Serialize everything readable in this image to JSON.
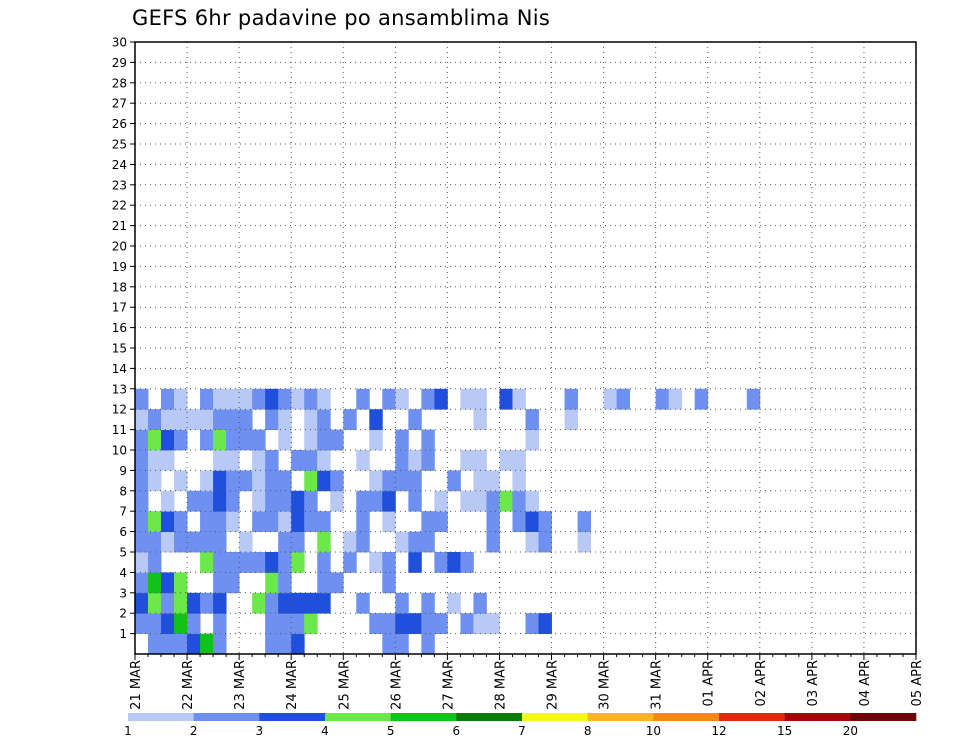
{
  "title": "GEFS 6hr padavine po ansamblima Nis",
  "chart_data": {
    "type": "heatmap",
    "title": "GEFS 6hr padavine po ansamblima Nis",
    "x_tick_labels": [
      "21 MAR",
      "22 MAR",
      "23 MAR",
      "24 MAR",
      "25 MAR",
      "26 MAR",
      "27 MAR",
      "28 MAR",
      "29 MAR",
      "30 MAR",
      "31 MAR",
      "01 APR",
      "02 APR",
      "03 APR",
      "04 APR",
      "05 APR"
    ],
    "y_tick_labels": [
      "1",
      "2",
      "3",
      "4",
      "5",
      "6",
      "7",
      "8",
      "9",
      "10",
      "11",
      "12",
      "13",
      "14",
      "15",
      "16",
      "17",
      "18",
      "19",
      "20",
      "21",
      "22",
      "23",
      "24",
      "25",
      "26",
      "27",
      "28",
      "29",
      "30"
    ],
    "ylim": [
      0,
      30
    ],
    "time_steps_per_day": 4,
    "grid": true,
    "legend": {
      "placement": "bottom",
      "levels": [
        "1",
        "2",
        "3",
        "4",
        "5",
        "6",
        "7",
        "8",
        "10",
        "12",
        "15",
        "20"
      ],
      "colors": [
        "#b9c9f5",
        "#6e90f0",
        "#1f4fdb",
        "#6ce84c",
        "#10c21a",
        "#0a7a0a",
        "#f7f71c",
        "#f8b22c",
        "#f5871b",
        "#dc2b10",
        "#a00a0a",
        "#6e0606"
      ]
    },
    "cells": [
      [
        1,
        0.25,
        2
      ],
      [
        1,
        0.5,
        2
      ],
      [
        1,
        0.75,
        2
      ],
      [
        1,
        1,
        3
      ],
      [
        1,
        1.25,
        5
      ],
      [
        1,
        1.5,
        2
      ],
      [
        1,
        2.5,
        2
      ],
      [
        1,
        2.75,
        2
      ],
      [
        1,
        3,
        3
      ],
      [
        1,
        4.75,
        2
      ],
      [
        1,
        5,
        2
      ],
      [
        1,
        5.5,
        2
      ],
      [
        2,
        0,
        2
      ],
      [
        2,
        0.25,
        2
      ],
      [
        2,
        0.5,
        3
      ],
      [
        2,
        0.75,
        5
      ],
      [
        2,
        1,
        2
      ],
      [
        2,
        1.5,
        2
      ],
      [
        2,
        2.5,
        2
      ],
      [
        2,
        2.75,
        2
      ],
      [
        2,
        3,
        2
      ],
      [
        2,
        3.25,
        4
      ],
      [
        2,
        4.5,
        2
      ],
      [
        2,
        4.75,
        2
      ],
      [
        2,
        5,
        3
      ],
      [
        2,
        5.25,
        3
      ],
      [
        2,
        5.5,
        2
      ],
      [
        2,
        5.75,
        2
      ],
      [
        2,
        6.25,
        2
      ],
      [
        2,
        6.5,
        1
      ],
      [
        2,
        6.75,
        1
      ],
      [
        2,
        7.5,
        2
      ],
      [
        2,
        7.75,
        3
      ],
      [
        3,
        0,
        3
      ],
      [
        3,
        0.25,
        4
      ],
      [
        3,
        0.5,
        2
      ],
      [
        3,
        0.75,
        4
      ],
      [
        3,
        1,
        3
      ],
      [
        3,
        1.25,
        2
      ],
      [
        3,
        1.5,
        3
      ],
      [
        3,
        2.25,
        4
      ],
      [
        3,
        2.5,
        2
      ],
      [
        3,
        2.75,
        3
      ],
      [
        3,
        3,
        3
      ],
      [
        3,
        3.25,
        3
      ],
      [
        3,
        3.5,
        3
      ],
      [
        3,
        4.25,
        2
      ],
      [
        3,
        5,
        2
      ],
      [
        3,
        5.5,
        2
      ],
      [
        3,
        6,
        1
      ],
      [
        3,
        6.5,
        2
      ],
      [
        4,
        0,
        2
      ],
      [
        4,
        0.25,
        5
      ],
      [
        4,
        0.5,
        3
      ],
      [
        4,
        0.75,
        4
      ],
      [
        4,
        1.5,
        2
      ],
      [
        4,
        1.75,
        2
      ],
      [
        4,
        2.5,
        4
      ],
      [
        4,
        2.75,
        2
      ],
      [
        4,
        3.5,
        2
      ],
      [
        4,
        3.75,
        2
      ],
      [
        4,
        4.75,
        2
      ],
      [
        5,
        0,
        1
      ],
      [
        5,
        0.25,
        2
      ],
      [
        5,
        1.25,
        4
      ],
      [
        5,
        1.5,
        2
      ],
      [
        5,
        1.75,
        2
      ],
      [
        5,
        2,
        2
      ],
      [
        5,
        2.25,
        2
      ],
      [
        5,
        2.5,
        3
      ],
      [
        5,
        2.75,
        2
      ],
      [
        5,
        3,
        4
      ],
      [
        5,
        3.5,
        2
      ],
      [
        5,
        4,
        2
      ],
      [
        5,
        4.5,
        1
      ],
      [
        5,
        4.75,
        2
      ],
      [
        5,
        5.25,
        3
      ],
      [
        5,
        5.75,
        2
      ],
      [
        5,
        6,
        3
      ],
      [
        5,
        6.25,
        2
      ],
      [
        6,
        0,
        2
      ],
      [
        6,
        0.25,
        2
      ],
      [
        6,
        0.5,
        1
      ],
      [
        6,
        0.75,
        2
      ],
      [
        6,
        1,
        2
      ],
      [
        6,
        1.25,
        2
      ],
      [
        6,
        1.5,
        2
      ],
      [
        6,
        2,
        1
      ],
      [
        6,
        2.75,
        2
      ],
      [
        6,
        3,
        2
      ],
      [
        6,
        3.5,
        4
      ],
      [
        6,
        4,
        1
      ],
      [
        6,
        4.25,
        2
      ],
      [
        6,
        5,
        1
      ],
      [
        6,
        5.25,
        2
      ],
      [
        6,
        5.5,
        2
      ],
      [
        6,
        6.75,
        2
      ],
      [
        6,
        7.5,
        1
      ],
      [
        6,
        7.75,
        2
      ],
      [
        6,
        8.5,
        1
      ],
      [
        7,
        0,
        2
      ],
      [
        7,
        0.25,
        4
      ],
      [
        7,
        0.5,
        3
      ],
      [
        7,
        0.75,
        2
      ],
      [
        7,
        1.25,
        2
      ],
      [
        7,
        1.5,
        2
      ],
      [
        7,
        1.75,
        1
      ],
      [
        7,
        2.25,
        2
      ],
      [
        7,
        2.5,
        2
      ],
      [
        7,
        2.75,
        1
      ],
      [
        7,
        3,
        3
      ],
      [
        7,
        3.25,
        2
      ],
      [
        7,
        3.5,
        2
      ],
      [
        7,
        4.25,
        2
      ],
      [
        7,
        4.75,
        1
      ],
      [
        7,
        5.5,
        2
      ],
      [
        7,
        5.75,
        2
      ],
      [
        7,
        6.75,
        2
      ],
      [
        7,
        7.25,
        2
      ],
      [
        7,
        7.5,
        3
      ],
      [
        7,
        7.75,
        2
      ],
      [
        7,
        8.5,
        2
      ],
      [
        8,
        0,
        2
      ],
      [
        8,
        0.5,
        1
      ],
      [
        8,
        1,
        2
      ],
      [
        8,
        1.25,
        2
      ],
      [
        8,
        1.5,
        3
      ],
      [
        8,
        1.75,
        2
      ],
      [
        8,
        2.25,
        1
      ],
      [
        8,
        2.5,
        2
      ],
      [
        8,
        2.75,
        2
      ],
      [
        8,
        3,
        3
      ],
      [
        8,
        3.25,
        2
      ],
      [
        8,
        3.75,
        1
      ],
      [
        8,
        4.25,
        2
      ],
      [
        8,
        4.5,
        2
      ],
      [
        8,
        4.75,
        3
      ],
      [
        8,
        5.25,
        2
      ],
      [
        8,
        5.75,
        1
      ],
      [
        8,
        6.25,
        1
      ],
      [
        8,
        6.5,
        1
      ],
      [
        8,
        6.75,
        2
      ],
      [
        8,
        7,
        4
      ],
      [
        8,
        7.25,
        2
      ],
      [
        8,
        7.5,
        1
      ],
      [
        9,
        0,
        2
      ],
      [
        9,
        0.25,
        1
      ],
      [
        9,
        0.75,
        1
      ],
      [
        9,
        1.25,
        1
      ],
      [
        9,
        1.5,
        3
      ],
      [
        9,
        1.75,
        2
      ],
      [
        9,
        2,
        2
      ],
      [
        9,
        2.25,
        1
      ],
      [
        9,
        2.5,
        2
      ],
      [
        9,
        2.75,
        2
      ],
      [
        9,
        3.25,
        4
      ],
      [
        9,
        3.5,
        3
      ],
      [
        9,
        3.75,
        2
      ],
      [
        9,
        4.5,
        1
      ],
      [
        9,
        4.75,
        2
      ],
      [
        9,
        5,
        2
      ],
      [
        9,
        5.25,
        2
      ],
      [
        9,
        6,
        2
      ],
      [
        9,
        6.5,
        1
      ],
      [
        9,
        6.75,
        1
      ],
      [
        9,
        7.25,
        1
      ],
      [
        10,
        0,
        2
      ],
      [
        10,
        0.25,
        1
      ],
      [
        10,
        0.5,
        1
      ],
      [
        10,
        1.5,
        1
      ],
      [
        10,
        1.75,
        1
      ],
      [
        10,
        2.25,
        1
      ],
      [
        10,
        2.5,
        2
      ],
      [
        10,
        3,
        2
      ],
      [
        10,
        3.25,
        2
      ],
      [
        10,
        3.5,
        1
      ],
      [
        10,
        4.25,
        1
      ],
      [
        10,
        5,
        2
      ],
      [
        10,
        5.25,
        1
      ],
      [
        10,
        5.5,
        2
      ],
      [
        10,
        6.25,
        1
      ],
      [
        10,
        6.5,
        1
      ],
      [
        10,
        7,
        1
      ],
      [
        10,
        7.25,
        1
      ],
      [
        11,
        0,
        2
      ],
      [
        11,
        0.25,
        4
      ],
      [
        11,
        0.5,
        3
      ],
      [
        11,
        0.75,
        2
      ],
      [
        11,
        1.25,
        2
      ],
      [
        11,
        1.5,
        4
      ],
      [
        11,
        1.75,
        2
      ],
      [
        11,
        2,
        2
      ],
      [
        11,
        2.25,
        2
      ],
      [
        11,
        2.75,
        1
      ],
      [
        11,
        3.25,
        1
      ],
      [
        11,
        3.5,
        2
      ],
      [
        11,
        3.75,
        2
      ],
      [
        11,
        4.5,
        1
      ],
      [
        11,
        5,
        2
      ],
      [
        11,
        5.5,
        2
      ],
      [
        11,
        7.5,
        1
      ],
      [
        12,
        0,
        1
      ],
      [
        12,
        0.25,
        2
      ],
      [
        12,
        0.5,
        1
      ],
      [
        12,
        0.75,
        1
      ],
      [
        12,
        1,
        1
      ],
      [
        12,
        1.25,
        1
      ],
      [
        12,
        1.5,
        2
      ],
      [
        12,
        1.75,
        2
      ],
      [
        12,
        2,
        2
      ],
      [
        12,
        2.5,
        2
      ],
      [
        12,
        2.75,
        1
      ],
      [
        12,
        3.25,
        1
      ],
      [
        12,
        3.5,
        2
      ],
      [
        12,
        4,
        2
      ],
      [
        12,
        4.5,
        3
      ],
      [
        12,
        5.25,
        2
      ],
      [
        12,
        6.5,
        1
      ],
      [
        12,
        7.5,
        2
      ],
      [
        12,
        8.25,
        1
      ]
    ],
    "cells_upper": [
      [
        13,
        0,
        2
      ],
      [
        13,
        0.5,
        2
      ],
      [
        13,
        0.75,
        1
      ],
      [
        13,
        1.25,
        2
      ],
      [
        13,
        1.5,
        1
      ],
      [
        13,
        1.75,
        1
      ],
      [
        13,
        2,
        1
      ],
      [
        13,
        2.25,
        2
      ],
      [
        13,
        2.5,
        3
      ],
      [
        13,
        2.75,
        2
      ],
      [
        13,
        3,
        1
      ],
      [
        13,
        3.25,
        2
      ],
      [
        13,
        3.5,
        1
      ],
      [
        13,
        4.25,
        2
      ],
      [
        13,
        4.75,
        2
      ],
      [
        13,
        5,
        1
      ],
      [
        13,
        5.5,
        2
      ],
      [
        13,
        5.75,
        3
      ],
      [
        13,
        6.25,
        1
      ],
      [
        13,
        6.5,
        1
      ],
      [
        13,
        7,
        3
      ],
      [
        13,
        7.25,
        1
      ],
      [
        13,
        8.25,
        2
      ],
      [
        13,
        9,
        1
      ],
      [
        13,
        9.25,
        2
      ],
      [
        13,
        10,
        2
      ],
      [
        13,
        10.25,
        1
      ],
      [
        13,
        10.75,
        2
      ],
      [
        13,
        11.75,
        2
      ]
    ]
  }
}
